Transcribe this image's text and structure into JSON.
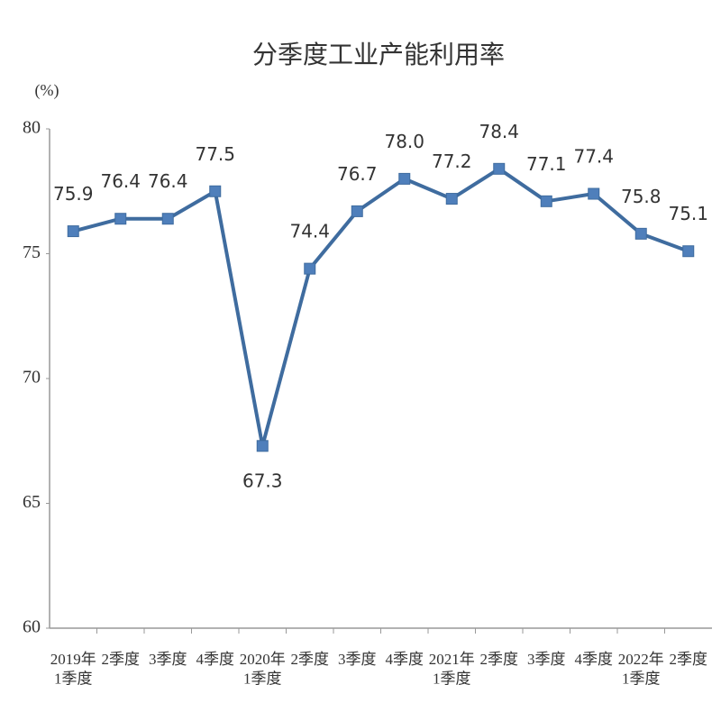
{
  "chart_data": {
    "type": "line",
    "title": "分季度工业产能利用率",
    "y_label": "(%)",
    "categories": [
      "2019年\n1季度",
      "2季度",
      "3季度",
      "4季度",
      "2020年\n1季度",
      "2季度",
      "3季度",
      "4季度",
      "2021年\n1季度",
      "2季度",
      "3季度",
      "4季度",
      "2022年\n1季度",
      "2季度"
    ],
    "values": [
      75.9,
      76.4,
      76.4,
      77.5,
      67.3,
      74.4,
      76.7,
      78.0,
      77.2,
      78.4,
      77.1,
      77.4,
      75.8,
      75.1
    ],
    "value_labels": [
      "75.9",
      "76.4",
      "76.4",
      "77.5",
      "67.3",
      "74.4",
      "76.7",
      "78.0",
      "77.2",
      "78.4",
      "77.1",
      "77.4",
      "75.8",
      "75.1"
    ],
    "color": "#3f6c9f",
    "marker_color": "#4f7fbb",
    "ylim": [
      60,
      80
    ],
    "yticks": [
      60,
      65,
      70,
      75,
      80
    ],
    "grid": false
  }
}
